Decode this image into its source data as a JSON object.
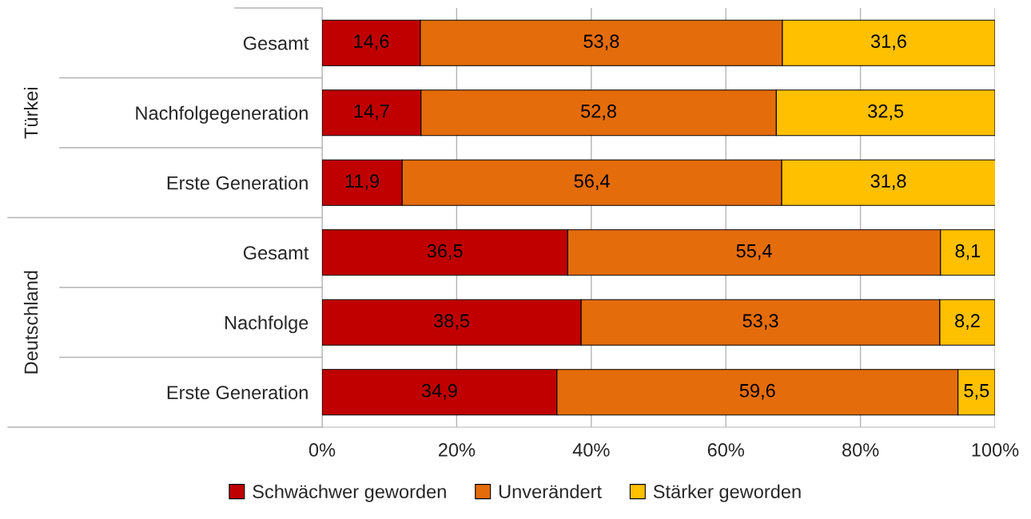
{
  "chart_data": {
    "type": "bar",
    "orientation": "horizontal",
    "stacked": true,
    "categories": [
      "Gesamt",
      "Nachfolgegeneration",
      "Erste Generation",
      "Gesamt",
      "Nachfolge",
      "Erste Generation"
    ],
    "series": [
      {
        "name": "Schwächwer geworden",
        "color": "#c00000",
        "values": [
          14.6,
          14.7,
          11.9,
          36.5,
          38.5,
          34.9
        ],
        "value_labels": [
          "14,6",
          "14,7",
          "11,9",
          "36,5",
          "38,5",
          "34,9"
        ]
      },
      {
        "name": "Unverändert",
        "color": "#e46c0a",
        "values": [
          53.8,
          52.8,
          56.4,
          55.4,
          53.3,
          59.6
        ],
        "value_labels": [
          "53,8",
          "52,8",
          "56,4",
          "55,4",
          "53,3",
          "59,6"
        ]
      },
      {
        "name": "Stärker geworden",
        "color": "#ffc000",
        "values": [
          31.6,
          32.5,
          31.8,
          8.1,
          8.2,
          5.5
        ],
        "value_labels": [
          "31,6",
          "32,5",
          "31,8",
          "8,1",
          "8,2",
          "5,5"
        ]
      }
    ],
    "xlim": [
      0,
      100
    ],
    "xticks": [
      {
        "value": 0,
        "label": "0%"
      },
      {
        "value": 20,
        "label": "20%"
      },
      {
        "value": 40,
        "label": "40%"
      },
      {
        "value": 60,
        "label": "60%"
      },
      {
        "value": 80,
        "label": "80%"
      },
      {
        "value": 100,
        "label": "100%"
      }
    ],
    "annotations": [
      "Türkei",
      "Deutschland"
    ],
    "grid": "x",
    "legend": "bottom"
  }
}
